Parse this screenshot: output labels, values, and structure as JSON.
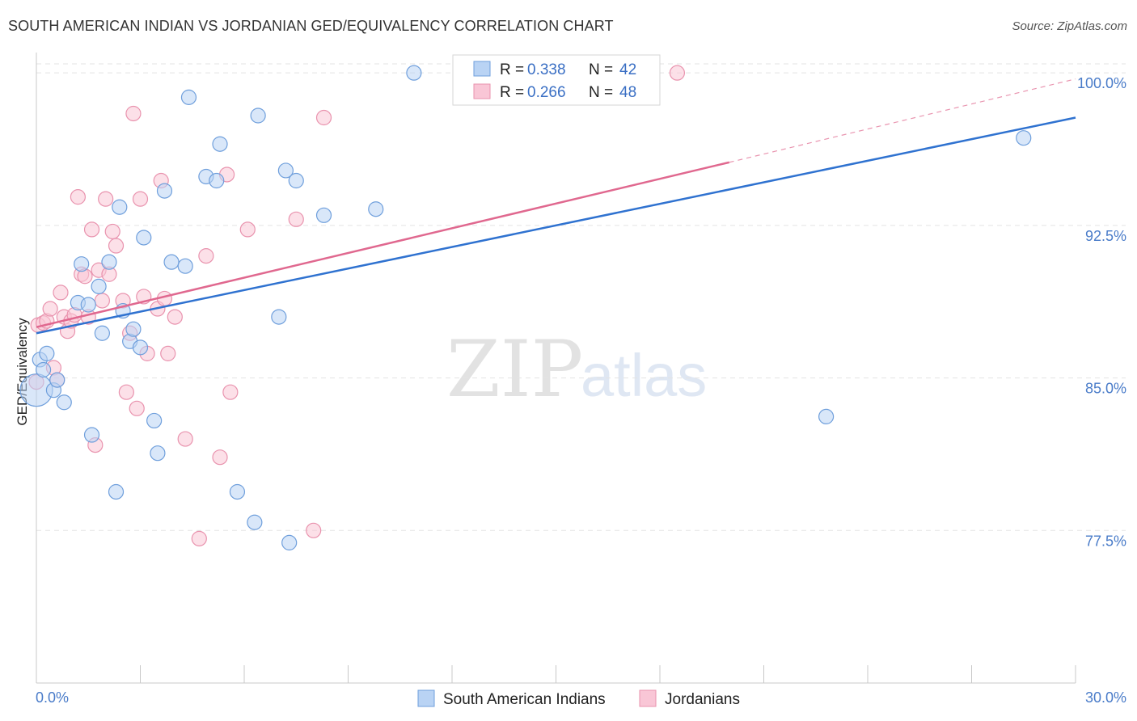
{
  "title": "SOUTH AMERICAN INDIAN VS JORDANIAN GED/EQUIVALENCY CORRELATION CHART",
  "source": "Source: ZipAtlas.com",
  "watermark": {
    "zip": "ZIP",
    "atlas": "atlas"
  },
  "colors": {
    "blue_fill": "#b9d3f4",
    "blue_stroke": "#6f9fdc",
    "blue_line": "#2f72d0",
    "pink_fill": "#f9c6d6",
    "pink_stroke": "#e993ae",
    "pink_line": "#e0688f",
    "grid": "#e3e3e3",
    "tick_label": "#4a7cc9"
  },
  "legend": {
    "r_label": "R =",
    "n_label": "N =",
    "blue_r": "0.338",
    "blue_n": "42",
    "pink_r": "0.266",
    "pink_n": "48"
  },
  "chart_data": {
    "type": "scatter",
    "title": "SOUTH AMERICAN INDIAN VS JORDANIAN GED/EQUIVALENCY CORRELATION CHART",
    "xlabel": "",
    "ylabel": "GED/Equivalency",
    "xlim": [
      0,
      30
    ],
    "ylim": [
      70,
      101
    ],
    "x_tick_labels": [
      "0.0%",
      "30.0%"
    ],
    "y_ticks": [
      77.5,
      85.0,
      92.5,
      100.0
    ],
    "y_tick_labels": [
      "77.5%",
      "85.0%",
      "92.5%",
      "100.0%"
    ],
    "grid": true,
    "legend_position": "top-center",
    "series": [
      {
        "name": "South American Indians",
        "color": "#6f9fdc",
        "R": 0.338,
        "N": 42,
        "trend": {
          "x0": 0.0,
          "y0": 87.2,
          "x1": 30.0,
          "y1": 97.8
        },
        "points": [
          [
            0.0,
            84.4
          ],
          [
            0.1,
            85.9
          ],
          [
            0.2,
            85.4
          ],
          [
            0.3,
            86.2
          ],
          [
            0.5,
            84.4
          ],
          [
            0.6,
            84.9
          ],
          [
            0.8,
            83.8
          ],
          [
            1.2,
            88.7
          ],
          [
            1.3,
            90.6
          ],
          [
            1.5,
            88.6
          ],
          [
            1.6,
            82.2
          ],
          [
            1.8,
            89.5
          ],
          [
            1.9,
            87.2
          ],
          [
            2.1,
            90.7
          ],
          [
            2.3,
            79.4
          ],
          [
            2.4,
            93.4
          ],
          [
            2.5,
            88.3
          ],
          [
            2.7,
            86.8
          ],
          [
            2.8,
            87.4
          ],
          [
            3.0,
            86.5
          ],
          [
            3.1,
            91.9
          ],
          [
            3.4,
            82.9
          ],
          [
            3.5,
            81.3
          ],
          [
            3.7,
            94.2
          ],
          [
            3.9,
            90.7
          ],
          [
            4.3,
            90.5
          ],
          [
            4.4,
            98.8
          ],
          [
            4.9,
            94.9
          ],
          [
            5.2,
            94.7
          ],
          [
            5.3,
            96.5
          ],
          [
            5.8,
            79.4
          ],
          [
            6.3,
            77.9
          ],
          [
            6.4,
            97.9
          ],
          [
            7.0,
            88.0
          ],
          [
            7.2,
            95.2
          ],
          [
            7.3,
            76.9
          ],
          [
            7.5,
            94.7
          ],
          [
            8.3,
            93.0
          ],
          [
            9.8,
            93.3
          ],
          [
            10.9,
            100.0
          ],
          [
            22.8,
            83.1
          ],
          [
            28.5,
            96.8
          ]
        ]
      },
      {
        "name": "Jordanians",
        "color": "#e993ae",
        "R": 0.266,
        "N": 48,
        "trend": {
          "x0": 0.0,
          "y0": 87.5,
          "x1": 20.0,
          "y1": 95.6
        },
        "trend_dashed": {
          "x0": 20.0,
          "y0": 95.6,
          "x1": 30.0,
          "y1": 99.7
        },
        "points": [
          [
            0.0,
            84.8
          ],
          [
            0.05,
            87.6
          ],
          [
            0.2,
            87.7
          ],
          [
            0.3,
            87.8
          ],
          [
            0.4,
            88.4
          ],
          [
            0.5,
            85.5
          ],
          [
            0.6,
            84.9
          ],
          [
            0.7,
            89.2
          ],
          [
            0.8,
            88.0
          ],
          [
            0.9,
            87.3
          ],
          [
            1.0,
            87.8
          ],
          [
            1.1,
            88.1
          ],
          [
            1.2,
            93.9
          ],
          [
            1.3,
            90.1
          ],
          [
            1.4,
            90.0
          ],
          [
            1.5,
            88.0
          ],
          [
            1.6,
            92.3
          ],
          [
            1.7,
            81.7
          ],
          [
            1.8,
            90.3
          ],
          [
            1.9,
            88.8
          ],
          [
            2.0,
            93.8
          ],
          [
            2.1,
            90.1
          ],
          [
            2.2,
            92.2
          ],
          [
            2.3,
            91.5
          ],
          [
            2.5,
            88.8
          ],
          [
            2.6,
            84.3
          ],
          [
            2.7,
            87.2
          ],
          [
            2.8,
            98.0
          ],
          [
            2.9,
            83.5
          ],
          [
            3.0,
            93.8
          ],
          [
            3.1,
            89.0
          ],
          [
            3.2,
            86.2
          ],
          [
            3.5,
            88.4
          ],
          [
            3.6,
            94.7
          ],
          [
            3.7,
            88.9
          ],
          [
            3.8,
            86.2
          ],
          [
            4.0,
            88.0
          ],
          [
            4.3,
            82.0
          ],
          [
            4.7,
            77.1
          ],
          [
            4.9,
            91.0
          ],
          [
            5.3,
            81.1
          ],
          [
            5.5,
            95.0
          ],
          [
            5.6,
            84.3
          ],
          [
            6.1,
            92.3
          ],
          [
            7.5,
            92.8
          ],
          [
            8.0,
            77.5
          ],
          [
            8.3,
            97.8
          ],
          [
            18.5,
            100.0
          ]
        ]
      }
    ]
  }
}
